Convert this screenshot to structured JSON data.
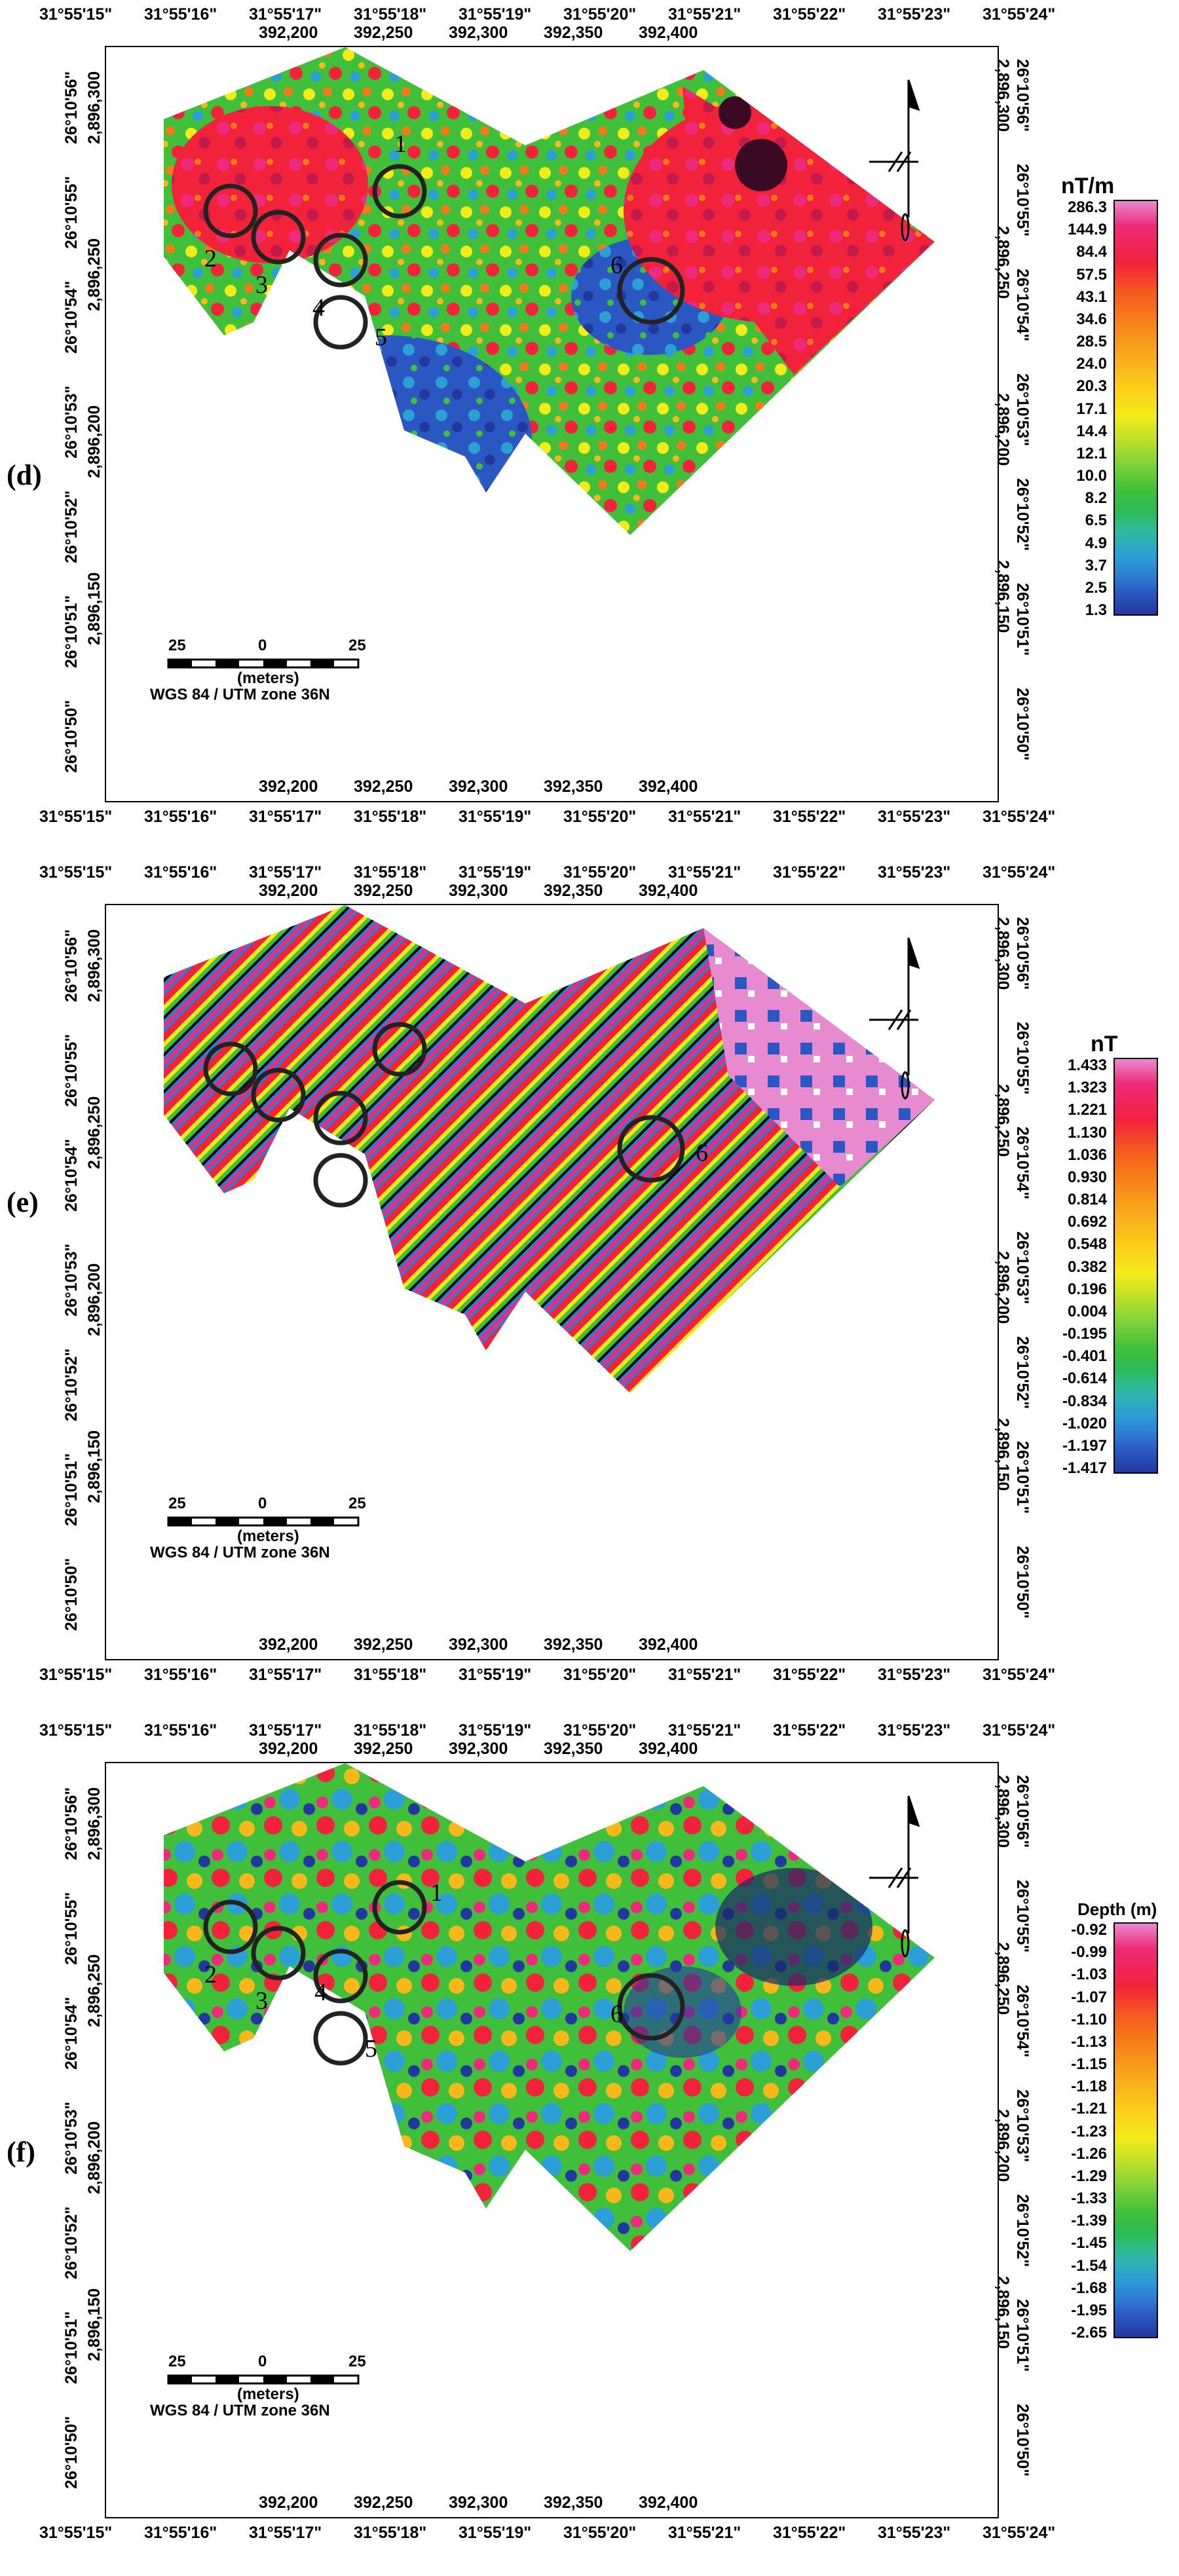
{
  "panels": [
    {
      "label": "(d)",
      "legend_unit": "nT/m",
      "colorbar": [
        "286.3",
        "144.9",
        "84.4",
        "57.5",
        "43.1",
        "34.6",
        "28.5",
        "24.0",
        "20.3",
        "17.1",
        "14.4",
        "12.1",
        "10.0",
        "8.2",
        "6.5",
        "4.9",
        "3.7",
        "2.5",
        "1.3"
      ],
      "targets": [
        "1",
        "2",
        "3",
        "4",
        "5",
        "6"
      ]
    },
    {
      "label": "(e)",
      "legend_unit": "nT",
      "colorbar": [
        "1.433",
        "1.323",
        "1.221",
        "1.130",
        "1.036",
        "0.930",
        "0.814",
        "0.692",
        "0.548",
        "0.382",
        "0.196",
        "0.004",
        "-0.195",
        "-0.401",
        "-0.614",
        "-0.834",
        "-1.020",
        "-1.197",
        "-1.417"
      ],
      "targets": [
        "6"
      ]
    },
    {
      "label": "(f)",
      "legend_unit": "Depth (m)",
      "colorbar": [
        "-0.92",
        "-0.99",
        "-1.03",
        "-1.07",
        "-1.10",
        "-1.13",
        "-1.15",
        "-1.18",
        "-1.21",
        "-1.23",
        "-1.26",
        "-1.29",
        "-1.33",
        "-1.39",
        "-1.45",
        "-1.54",
        "-1.68",
        "-1.95",
        "-2.65"
      ],
      "targets": [
        "1",
        "2",
        "3",
        "4",
        "5",
        "6"
      ]
    }
  ],
  "axes": {
    "top_dms": [
      "31°55'15\"",
      "31°55'16\"",
      "31°55'17\"",
      "31°55'18\"",
      "31°55'19\"",
      "31°55'20\"",
      "31°55'21\"",
      "31°55'22\"",
      "31°55'23\"",
      "31°55'24\""
    ],
    "easting": [
      "392,200",
      "392,250",
      "392,300",
      "392,350",
      "392,400"
    ],
    "left_dms": [
      "26°10'56\"",
      "26°10'55\"",
      "26°10'54\"",
      "26°10'53\"",
      "26°10'52\"",
      "26°10'51\"",
      "26°10'50\""
    ],
    "northing": [
      "2,896,300",
      "2,896,250",
      "2,896,200",
      "2,896,150"
    ]
  },
  "scale_bar": {
    "ticks": [
      "25",
      "0",
      "25"
    ],
    "unit": "(meters)",
    "crs": "WGS 84 / UTM zone 36N"
  },
  "colors": {
    "magnetic_ramp": [
      "#e88ad0",
      "#ee2a7a",
      "#f3223b",
      "#f45a1f",
      "#f77a1a",
      "#f89a1a",
      "#f9b71c",
      "#fbd21a",
      "#f4ec19",
      "#b9e02a",
      "#7cd23a",
      "#3fbf3a",
      "#2dbb55",
      "#2fb9a0",
      "#2c9fd6",
      "#2d7bd4",
      "#2a57c1",
      "#23389e"
    ]
  }
}
